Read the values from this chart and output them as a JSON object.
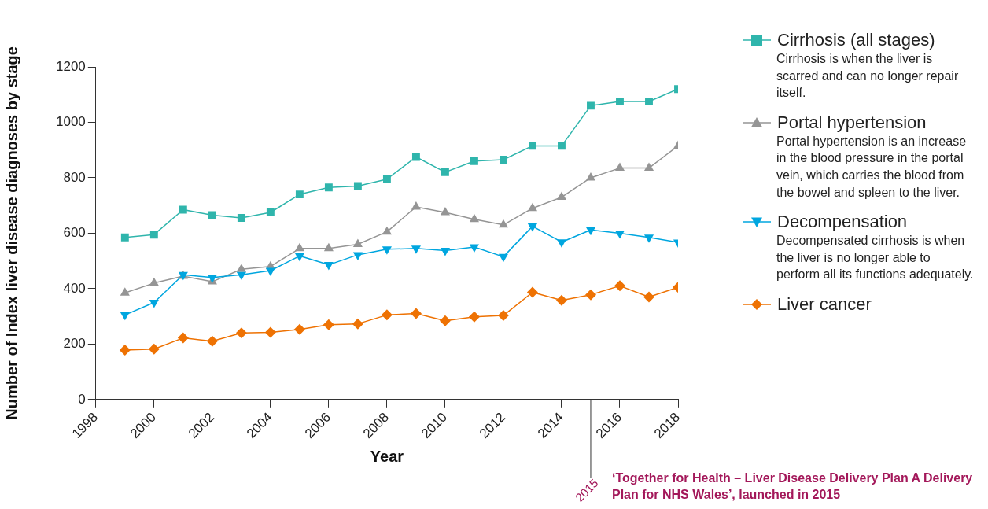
{
  "chart_data": {
    "type": "line",
    "xlabel": "Year",
    "ylabel": "Number of Index liver disease diagnoses by stage",
    "x": [
      1999,
      2000,
      2001,
      2002,
      2003,
      2004,
      2005,
      2006,
      2007,
      2008,
      2009,
      2010,
      2011,
      2012,
      2013,
      2014,
      2015,
      2016,
      2017,
      2018
    ],
    "series": [
      {
        "name": "Cirrhosis (all stages)",
        "color": "#2fb5ac",
        "marker": "square",
        "values": [
          585,
          595,
          685,
          665,
          655,
          675,
          740,
          765,
          770,
          795,
          875,
          820,
          860,
          865,
          915,
          915,
          1060,
          1075,
          1075,
          1120
        ]
      },
      {
        "name": "Portal hypertension",
        "color": "#959595",
        "marker": "triangle",
        "values": [
          385,
          420,
          445,
          425,
          470,
          480,
          545,
          545,
          560,
          605,
          695,
          675,
          650,
          630,
          690,
          730,
          800,
          835,
          835,
          915
        ]
      },
      {
        "name": "Decompensation",
        "color": "#00a6df",
        "marker": "triangle_down",
        "values": [
          305,
          350,
          450,
          440,
          450,
          465,
          518,
          486,
          522,
          542,
          545,
          537,
          550,
          515,
          625,
          568,
          612,
          600,
          585,
          567
        ]
      },
      {
        "name": "Liver cancer",
        "color": "#ee7203",
        "marker": "diamond",
        "values": [
          178,
          182,
          222,
          210,
          240,
          242,
          253,
          270,
          273,
          305,
          310,
          284,
          298,
          303,
          387,
          358,
          378,
          410,
          370,
          405
        ]
      }
    ],
    "xlim": [
      1998,
      2018
    ],
    "xticks": [
      1998,
      2000,
      2002,
      2004,
      2006,
      2008,
      2010,
      2012,
      2014,
      2016,
      2018
    ],
    "ylim": [
      0,
      1200
    ],
    "yticks": [
      0,
      200,
      400,
      600,
      800,
      1000,
      1200
    ],
    "grid": false,
    "legend": "right",
    "ref_lines": [
      {
        "axis": "x",
        "value": 2015,
        "label": "2015",
        "color": "#333333"
      }
    ],
    "annotations": [
      "Cirrhosis is when the liver is scarred and can no longer repair itself.",
      "Portal hypertension is an increase in the blood pressure in the portal vein, which carries the blood from the bowel and spleen to the liver.",
      "Decompensated cirrhosis is when the liver is no longer able to perform all its functions adequately.",
      "‘Together for Health – Liver Disease Delivery Plan A Delivery Plan for NHS Wales’, launched in 2015"
    ]
  }
}
